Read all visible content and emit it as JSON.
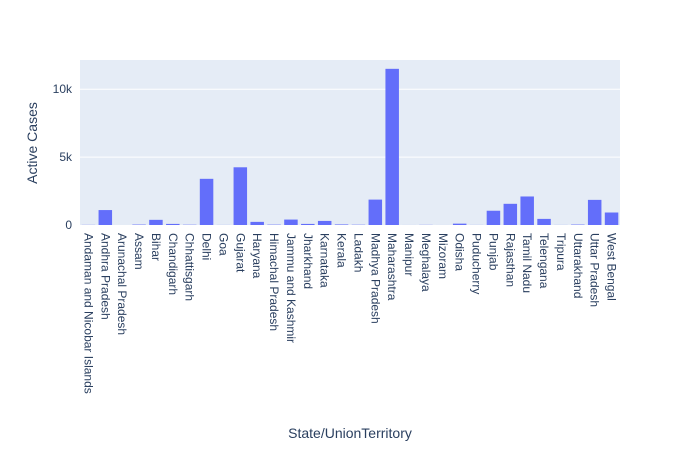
{
  "chart_data": {
    "type": "bar",
    "xlabel": "State/UnionTerritory",
    "ylabel": "Active Cases",
    "ylim": [
      0,
      12150
    ],
    "yticks": [
      0,
      5000,
      10000
    ],
    "ytick_labels": [
      "0",
      "5k",
      "10k"
    ],
    "grid": true,
    "colors": {
      "bar": "#636efa",
      "plot_bg": "#e5ecf6",
      "grid": "#ffffff",
      "text": "#2a3f5f"
    },
    "categories": [
      "Andaman and Nicobar Islands",
      "Andhra Pradesh",
      "Arunachal Pradesh",
      "Assam",
      "Bihar",
      "Chandigarh",
      "Chhattisgarh",
      "Delhi",
      "Goa",
      "Gujarat",
      "Haryana",
      "Himachal Pradesh",
      "Jammu and Kashmir",
      "Jharkhand",
      "Karnataka",
      "Kerala",
      "Ladakh",
      "Madhya Pradesh",
      "Maharashtra",
      "Manipur",
      "Meghalaya",
      "Mizoram",
      "Odisha",
      "Puducherry",
      "Punjab",
      "Rajasthan",
      "Tamil Nadu",
      "Telengana",
      "Tripura",
      "Uttarakhand",
      "Uttar Pradesh",
      "West Bengal"
    ],
    "values": [
      10,
      1100,
      0,
      30,
      380,
      80,
      20,
      3400,
      5,
      4250,
      230,
      25,
      400,
      80,
      300,
      40,
      20,
      1870,
      11500,
      2,
      10,
      1,
      100,
      5,
      1050,
      1560,
      2100,
      450,
      5,
      30,
      1850,
      920
    ]
  }
}
